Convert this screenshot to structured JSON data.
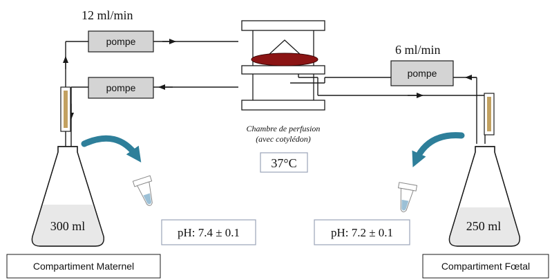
{
  "flows": {
    "maternal": "12 ml/min",
    "fetal": "6 ml/min"
  },
  "pumps": {
    "maternal_top": "pompe",
    "maternal_bottom": "pompe",
    "fetal": "pompe"
  },
  "chamber": {
    "caption_line1": "Chambre de perfusion",
    "caption_line2": "(avec cotylédon)",
    "temperature": "37°C"
  },
  "flasks": {
    "maternal_volume": "300 ml",
    "fetal_volume": "250 ml"
  },
  "ph": {
    "maternal": "pH: 7.4 ± 0.1",
    "fetal": "pH: 7.2 ± 0.1"
  },
  "compartments": {
    "maternal": "Compartiment Maternel",
    "fetal": "Compartiment Fœtal"
  },
  "colors": {
    "line": "#1a1a1a",
    "pump_fill": "#d4d4d4",
    "cotyledon": "#8b1414",
    "curved_arrow": "#2e7f9a",
    "filter": "#b38a3a",
    "liquid": "#e8e8e8",
    "box_border": "#9aa3b8"
  }
}
